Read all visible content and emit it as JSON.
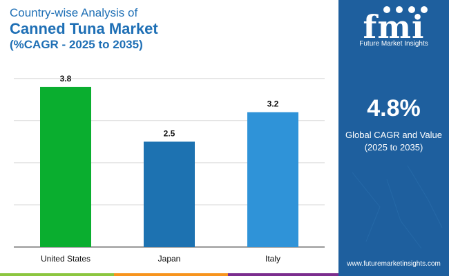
{
  "header": {
    "line1": "Country-wise Analysis of",
    "line2": "Canned Tuna Market",
    "line3": "(%CAGR - 2025 to 2035)"
  },
  "chart_data": {
    "type": "bar",
    "categories": [
      "United States",
      "Japan",
      "Italy"
    ],
    "values": [
      3.8,
      2.5,
      3.2
    ],
    "value_labels": [
      "3.8",
      "2.5",
      "3.2"
    ],
    "colors": [
      "#0aae2f",
      "#1d72b1",
      "#2f93d8"
    ],
    "ylim": [
      0,
      4
    ],
    "grid": true
  },
  "sidebar": {
    "brand_mark": "fmi",
    "brand_name": "Future Market Insights",
    "kpi_value": "4.8%",
    "kpi_label_1": "Global CAGR and Value",
    "kpi_label_2": "(2025 to 2035)",
    "url": "www.futuremarketinsights.com"
  },
  "theme": {
    "title_color": "#1e6fb5",
    "sidebar_bg": "#1e5f9e",
    "grid_color": "#d9d9d9",
    "strip_colors": [
      "#8cc63f",
      "#f7941d",
      "#7b2d8e"
    ]
  }
}
